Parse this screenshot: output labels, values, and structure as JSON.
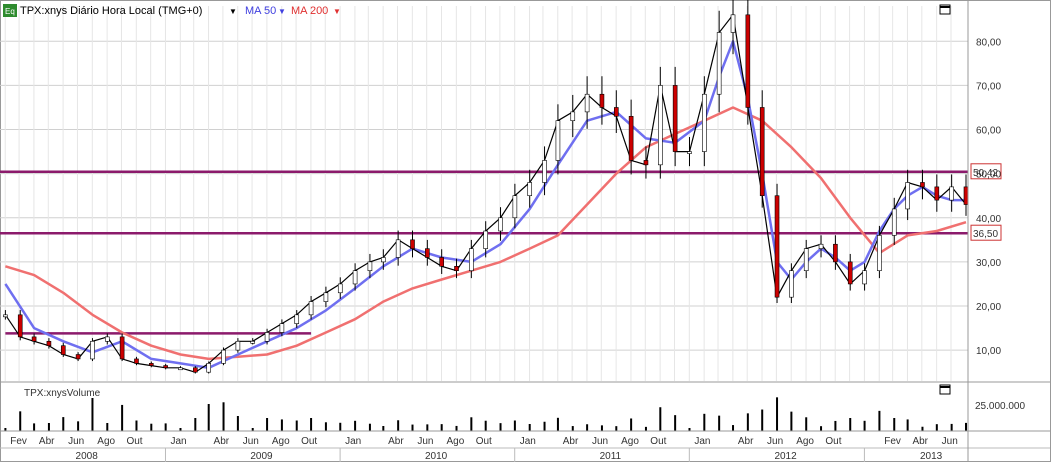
{
  "header": {
    "eq_badge": "Eq",
    "symbol": "TPX:xnys Diário Hora Local (TMG+0)",
    "ma50_label": "MA 50",
    "ma200_label": "MA 200",
    "volume_label": "TPX:xnysVolume",
    "volume_tick": "25.000.000"
  },
  "colors": {
    "price": "#000000",
    "down_candle": "#cc0000",
    "ma50": "#6f6ff0",
    "ma200": "#f07070",
    "hline": "#8b1a6b",
    "grid": "#d0d0d0",
    "badge_bg": "#2e8b2e"
  },
  "chart_data": {
    "type": "line",
    "title": "",
    "y_ticks": [
      "10,00",
      "20,00",
      "30,00",
      "40,00",
      "50,00",
      "60,00",
      "70,00",
      "80,00"
    ],
    "ylim": [
      3,
      88
    ],
    "x_months": [
      "Fev",
      "Abr",
      "Jun",
      "Ago",
      "Out",
      "Jan",
      "Abr",
      "Jun",
      "Ago",
      "Out",
      "Jan",
      "Abr",
      "Jun",
      "Ago",
      "Out",
      "Jan",
      "Abr",
      "Jun",
      "Ago",
      "Out",
      "Jan",
      "Abr",
      "Jun",
      "Ago",
      "Out",
      "Fev",
      "Abr",
      "Jun"
    ],
    "x_years": [
      "2008",
      "2009",
      "2010",
      "2011",
      "2012",
      "2013"
    ],
    "horizontal_levels": [
      {
        "label": "50,42",
        "value": 50.42
      },
      {
        "label": "36,50",
        "value": 36.5
      }
    ],
    "support_line": {
      "value": 13.8,
      "x_start": "2008-01",
      "x_end": "2009-10"
    },
    "series": [
      {
        "name": "TPX:xnys",
        "x": [
          "2008-01",
          "2008-02",
          "2008-03",
          "2008-04",
          "2008-05",
          "2008-06",
          "2008-07",
          "2008-08",
          "2008-09",
          "2008-10",
          "2008-11",
          "2008-12",
          "2009-01",
          "2009-02",
          "2009-03",
          "2009-04",
          "2009-05",
          "2009-06",
          "2009-07",
          "2009-08",
          "2009-09",
          "2009-10",
          "2009-11",
          "2009-12",
          "2010-01",
          "2010-02",
          "2010-03",
          "2010-04",
          "2010-05",
          "2010-06",
          "2010-07",
          "2010-08",
          "2010-09",
          "2010-10",
          "2010-11",
          "2010-12",
          "2011-01",
          "2011-02",
          "2011-03",
          "2011-04",
          "2011-05",
          "2011-06",
          "2011-07",
          "2011-08",
          "2011-09",
          "2011-10",
          "2011-11",
          "2011-12",
          "2012-01",
          "2012-02",
          "2012-03",
          "2012-04",
          "2012-05",
          "2012-06",
          "2012-07",
          "2012-08",
          "2012-09",
          "2012-10",
          "2012-11",
          "2012-12",
          "2013-01",
          "2013-02",
          "2013-03",
          "2013-04",
          "2013-05",
          "2013-06",
          "2013-07"
        ],
        "values": [
          18,
          13,
          12,
          11,
          9,
          8,
          12,
          13,
          8,
          7,
          6.5,
          6,
          6,
          5,
          7,
          10,
          12,
          12,
          14,
          16,
          18,
          21,
          23,
          25,
          28,
          30,
          31,
          35,
          33,
          31,
          29,
          28,
          33,
          37,
          40,
          45,
          48,
          53,
          62,
          64,
          68,
          65,
          63,
          53,
          52,
          70,
          55,
          55,
          68,
          82,
          86,
          65,
          45,
          22,
          28,
          33,
          34,
          30,
          25,
          28,
          36,
          42,
          48,
          47,
          44,
          47,
          43
        ]
      },
      {
        "name": "MA 50",
        "x": [
          "2008-01",
          "2008-03",
          "2008-05",
          "2008-07",
          "2008-09",
          "2008-11",
          "2009-01",
          "2009-03",
          "2009-05",
          "2009-07",
          "2009-09",
          "2009-11",
          "2010-01",
          "2010-03",
          "2010-05",
          "2010-07",
          "2010-09",
          "2010-11",
          "2011-01",
          "2011-03",
          "2011-05",
          "2011-07",
          "2011-09",
          "2011-11",
          "2012-01",
          "2012-02",
          "2012-03",
          "2012-04",
          "2012-05",
          "2012-06",
          "2012-07",
          "2012-08",
          "2012-09",
          "2012-10",
          "2012-11",
          "2012-12",
          "2013-01",
          "2013-02",
          "2013-03",
          "2013-04",
          "2013-05",
          "2013-06",
          "2013-07"
        ],
        "values": [
          25,
          15,
          12,
          9.5,
          12,
          8,
          7,
          6,
          9,
          12,
          15,
          19,
          24,
          29,
          33,
          31,
          30,
          34,
          42,
          52,
          62,
          64,
          58,
          57,
          62,
          72,
          80,
          67,
          50,
          30,
          26,
          30,
          33,
          31,
          28,
          30,
          37,
          42,
          45,
          47,
          45,
          44,
          44
        ]
      },
      {
        "name": "MA 200",
        "x": [
          "2008-01",
          "2008-03",
          "2008-05",
          "2008-07",
          "2008-09",
          "2008-11",
          "2009-01",
          "2009-03",
          "2009-05",
          "2009-07",
          "2009-09",
          "2009-11",
          "2010-01",
          "2010-03",
          "2010-05",
          "2010-07",
          "2010-09",
          "2010-11",
          "2011-01",
          "2011-03",
          "2011-05",
          "2011-07",
          "2011-09",
          "2011-11",
          "2012-01",
          "2012-03",
          "2012-05",
          "2012-07",
          "2012-09",
          "2012-11",
          "2013-01",
          "2013-03",
          "2013-05",
          "2013-07"
        ],
        "values": [
          29,
          27,
          23,
          18,
          14,
          11,
          9,
          8,
          8.5,
          9,
          11,
          14,
          17,
          21,
          24,
          26,
          28,
          30,
          33,
          36,
          43,
          50,
          56,
          59,
          62,
          65,
          62,
          56,
          49,
          40,
          32,
          36,
          37,
          39
        ]
      }
    ]
  }
}
